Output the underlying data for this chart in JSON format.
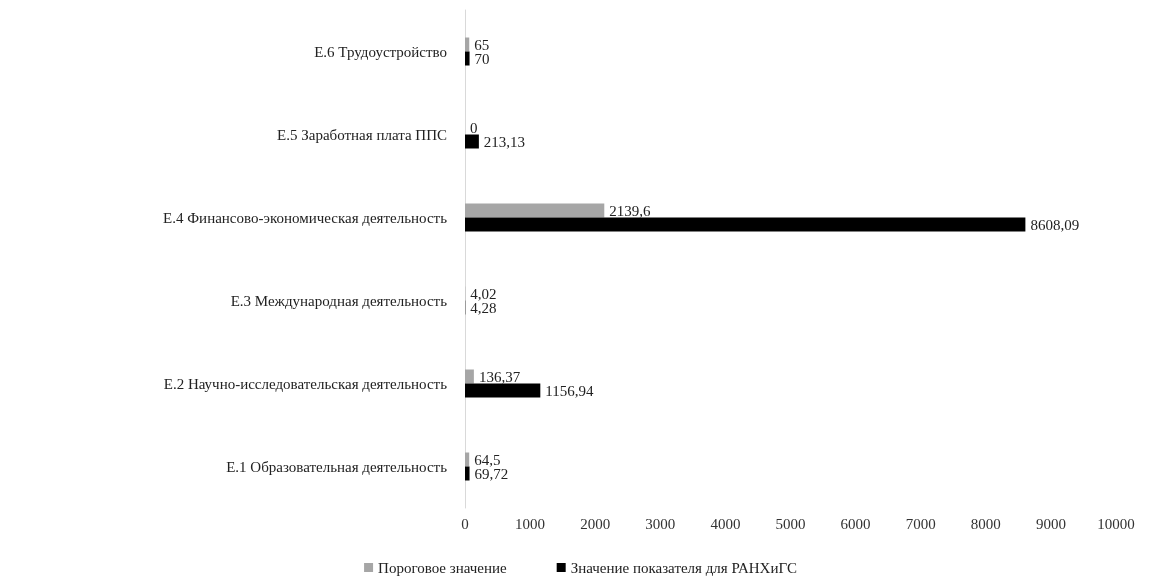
{
  "chart_data": {
    "type": "bar",
    "orientation": "horizontal",
    "categories": [
      "Е.6 Трудоустройство",
      "Е.5 Заработная плата ППС",
      "Е.4 Финансово-экономическая деятельность",
      "Е.3 Международная деятельность",
      "Е.2 Научно-исследовательская деятельность",
      "Е.1 Образовательная деятельность"
    ],
    "series": [
      {
        "name": "Пороговое значение",
        "color": "#a6a6a6",
        "values": [
          65,
          0,
          2139.6,
          4.02,
          136.37,
          64.5
        ],
        "value_labels": [
          "65",
          "0",
          "2139,6",
          "4,02",
          "136,37",
          "64,5"
        ]
      },
      {
        "name": "Значение показателя для РАНХиГС",
        "color": "#000000",
        "values": [
          70,
          213.13,
          8608.09,
          4.28,
          1156.94,
          69.72
        ],
        "value_labels": [
          "70",
          "213,13",
          "8608,09",
          "4,28",
          "1156,94",
          "69,72"
        ]
      }
    ],
    "xlim": [
      0,
      10000
    ],
    "xticks": [
      0,
      1000,
      2000,
      3000,
      4000,
      5000,
      6000,
      7000,
      8000,
      9000,
      10000
    ],
    "grid": false,
    "legend": "bottom"
  }
}
